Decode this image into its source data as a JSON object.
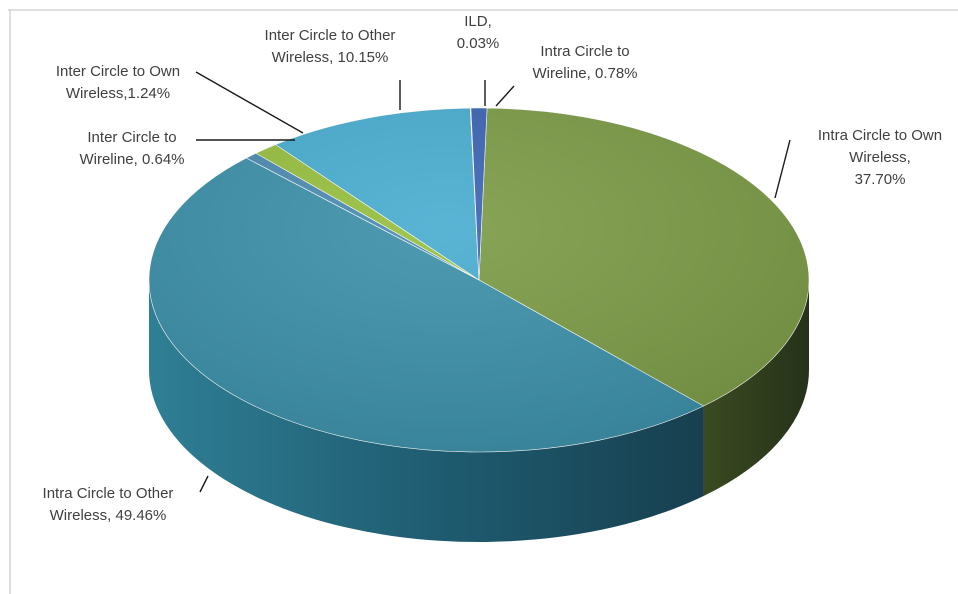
{
  "chart_data": {
    "type": "pie",
    "title": "",
    "three_d": true,
    "slices": [
      {
        "name": "Intra Circle to Own Wireless",
        "value": 37.7,
        "label_lines": [
          "Intra Circle to Own",
          "Wireless,",
          "37.70%"
        ],
        "color": "#7a9a44"
      },
      {
        "name": "Intra Circle to Other Wireless",
        "value": 49.46,
        "label_lines": [
          "Intra Circle to Other",
          "Wireless, 49.46%"
        ],
        "color": "#3a8fa8"
      },
      {
        "name": "Inter Circle to Wireline",
        "value": 0.64,
        "label_lines": [
          "Inter Circle to",
          "Wireline, 0.64%"
        ],
        "color": "#4a8ab0"
      },
      {
        "name": "Inter Circle to Own Wireless",
        "value": 1.24,
        "label_lines": [
          "Inter Circle to Own",
          "Wireless,1.24%"
        ],
        "color": "#96bf3c"
      },
      {
        "name": "Inter Circle to Other Wireless",
        "value": 10.15,
        "label_lines": [
          "Inter Circle to Other",
          "Wireless, 10.15%"
        ],
        "color": "#47acd0"
      },
      {
        "name": "ILD",
        "value": 0.03,
        "label_lines": [
          "ILD,",
          "0.03%"
        ],
        "color": "#3e6fb2"
      },
      {
        "name": "Intra Circle to Wireline",
        "value": 0.78,
        "label_lines": [
          "Intra Circle to",
          "Wireline, 0.78%"
        ],
        "color": "#3a63b3"
      }
    ]
  }
}
